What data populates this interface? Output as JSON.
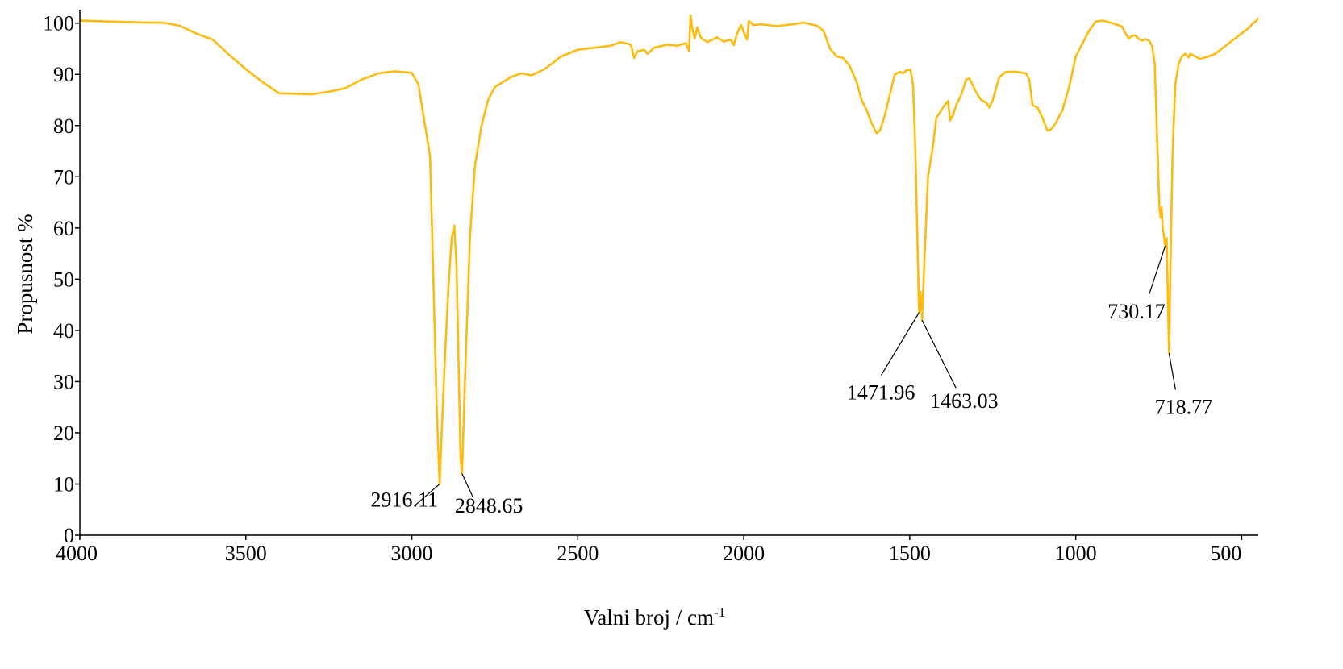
{
  "colors": {
    "series": "#FDBB0F",
    "axes": "#000000",
    "background": "#FFFFFF"
  },
  "chart_data": {
    "type": "line",
    "title": "",
    "xlabel": "Valni broj / cm",
    "xlabel_sup": "-1",
    "ylabel": "Propusnost %",
    "xlim": [
      4000,
      450
    ],
    "ylim": [
      0,
      102
    ],
    "x_reversed": true,
    "grid": false,
    "legend": "none",
    "x_ticks": [
      4000,
      3500,
      3000,
      2500,
      2000,
      1500,
      1000,
      500
    ],
    "x_tick_labels": [
      "4000",
      "3500",
      "3000",
      "2500",
      "2000",
      "1500",
      "1000",
      "500"
    ],
    "y_ticks": [
      0,
      10,
      20,
      30,
      40,
      50,
      60,
      70,
      80,
      90,
      100
    ],
    "y_tick_labels": [
      "0",
      "10",
      "20",
      "30",
      "40",
      "50",
      "60",
      "70",
      "80",
      "90",
      "100"
    ],
    "series": [
      {
        "points": [
          [
            4000,
            100.5
          ],
          [
            3900,
            100.3
          ],
          [
            3800,
            100.1
          ],
          [
            3750,
            100.1
          ],
          [
            3700,
            99.5
          ],
          [
            3650,
            98.0
          ],
          [
            3600,
            96.8
          ],
          [
            3550,
            93.8
          ],
          [
            3500,
            91.0
          ],
          [
            3450,
            88.5
          ],
          [
            3400,
            86.3
          ],
          [
            3350,
            86.2
          ],
          [
            3300,
            86.1
          ],
          [
            3250,
            86.6
          ],
          [
            3200,
            87.3
          ],
          [
            3150,
            89.0
          ],
          [
            3100,
            90.2
          ],
          [
            3050,
            90.6
          ],
          [
            3000,
            90.3
          ],
          [
            2980,
            88.0
          ],
          [
            2960,
            80.0
          ],
          [
            2945,
            74.0
          ],
          [
            2935,
            50.0
          ],
          [
            2925,
            25.0
          ],
          [
            2916.11,
            10.0
          ],
          [
            2910,
            20.0
          ],
          [
            2900,
            35.0
          ],
          [
            2890,
            48.0
          ],
          [
            2880,
            58.0
          ],
          [
            2872,
            60.5
          ],
          [
            2865,
            52.0
          ],
          [
            2858,
            30.0
          ],
          [
            2853,
            15.0
          ],
          [
            2848.65,
            12.0
          ],
          [
            2840,
            30.0
          ],
          [
            2825,
            58.0
          ],
          [
            2810,
            72.0
          ],
          [
            2790,
            80.0
          ],
          [
            2770,
            85.0
          ],
          [
            2750,
            87.5
          ],
          [
            2700,
            89.5
          ],
          [
            2670,
            90.2
          ],
          [
            2640,
            89.8
          ],
          [
            2600,
            91.0
          ],
          [
            2550,
            93.5
          ],
          [
            2500,
            94.8
          ],
          [
            2450,
            95.2
          ],
          [
            2400,
            95.6
          ],
          [
            2370,
            96.3
          ],
          [
            2340,
            95.8
          ],
          [
            2330,
            93.2
          ],
          [
            2320,
            94.5
          ],
          [
            2300,
            94.8
          ],
          [
            2290,
            94.0
          ],
          [
            2270,
            95.2
          ],
          [
            2230,
            95.8
          ],
          [
            2200,
            95.6
          ],
          [
            2175,
            96.1
          ],
          [
            2165,
            94.6
          ],
          [
            2160,
            101.5
          ],
          [
            2155,
            99.0
          ],
          [
            2148,
            97.0
          ],
          [
            2140,
            99.2
          ],
          [
            2130,
            97.2
          ],
          [
            2110,
            96.3
          ],
          [
            2080,
            97.2
          ],
          [
            2060,
            96.4
          ],
          [
            2040,
            96.8
          ],
          [
            2030,
            95.7
          ],
          [
            2020,
            98.0
          ],
          [
            2008,
            99.6
          ],
          [
            2000,
            98.2
          ],
          [
            1990,
            96.8
          ],
          [
            1985,
            100.4
          ],
          [
            1970,
            99.6
          ],
          [
            1950,
            99.8
          ],
          [
            1900,
            99.4
          ],
          [
            1850,
            99.8
          ],
          [
            1820,
            100.1
          ],
          [
            1780,
            99.5
          ],
          [
            1760,
            98.5
          ],
          [
            1740,
            95.0
          ],
          [
            1720,
            93.5
          ],
          [
            1700,
            93.2
          ],
          [
            1680,
            91.5
          ],
          [
            1660,
            88.5
          ],
          [
            1645,
            85.0
          ],
          [
            1630,
            83.0
          ],
          [
            1615,
            80.5
          ],
          [
            1600,
            78.5
          ],
          [
            1590,
            79.0
          ],
          [
            1575,
            82.0
          ],
          [
            1560,
            86.0
          ],
          [
            1545,
            90.0
          ],
          [
            1530,
            90.5
          ],
          [
            1520,
            90.2
          ],
          [
            1510,
            90.8
          ],
          [
            1498,
            90.9
          ],
          [
            1490,
            88.0
          ],
          [
            1483,
            75.0
          ],
          [
            1477,
            58.0
          ],
          [
            1471.96,
            43.5
          ],
          [
            1468,
            47.5
          ],
          [
            1465,
            45.0
          ],
          [
            1463.03,
            42.0
          ],
          [
            1455,
            55.0
          ],
          [
            1445,
            70.0
          ],
          [
            1430,
            76.0
          ],
          [
            1420,
            81.5
          ],
          [
            1400,
            83.5
          ],
          [
            1385,
            84.8
          ],
          [
            1378,
            81.0
          ],
          [
            1370,
            82.0
          ],
          [
            1360,
            84.0
          ],
          [
            1345,
            86.0
          ],
          [
            1330,
            89.0
          ],
          [
            1320,
            89.2
          ],
          [
            1300,
            86.5
          ],
          [
            1285,
            85.0
          ],
          [
            1270,
            84.5
          ],
          [
            1260,
            83.5
          ],
          [
            1250,
            85.0
          ],
          [
            1230,
            89.5
          ],
          [
            1210,
            90.5
          ],
          [
            1180,
            90.5
          ],
          [
            1150,
            90.2
          ],
          [
            1140,
            89.0
          ],
          [
            1130,
            84.0
          ],
          [
            1115,
            83.5
          ],
          [
            1100,
            81.5
          ],
          [
            1085,
            79.0
          ],
          [
            1075,
            79.2
          ],
          [
            1060,
            80.5
          ],
          [
            1040,
            83.0
          ],
          [
            1020,
            87.5
          ],
          [
            1000,
            93.5
          ],
          [
            980,
            96.0
          ],
          [
            960,
            98.5
          ],
          [
            940,
            100.3
          ],
          [
            920,
            100.5
          ],
          [
            900,
            100.2
          ],
          [
            880,
            99.8
          ],
          [
            860,
            99.3
          ],
          [
            850,
            98.0
          ],
          [
            840,
            97.0
          ],
          [
            830,
            97.5
          ],
          [
            820,
            97.6
          ],
          [
            810,
            96.9
          ],
          [
            800,
            96.6
          ],
          [
            790,
            96.9
          ],
          [
            778,
            96.5
          ],
          [
            770,
            95.5
          ],
          [
            762,
            92.0
          ],
          [
            755,
            78.0
          ],
          [
            748,
            64.0
          ],
          [
            744,
            62.0
          ],
          [
            741,
            64.0
          ],
          [
            738,
            60.0
          ],
          [
            730.17,
            56.5
          ],
          [
            726,
            58.0
          ],
          [
            722,
            45.0
          ],
          [
            718.77,
            35.5
          ],
          [
            714,
            55.0
          ],
          [
            708,
            75.0
          ],
          [
            700,
            88.0
          ],
          [
            690,
            92.0
          ],
          [
            680,
            93.5
          ],
          [
            670,
            94.0
          ],
          [
            660,
            93.3
          ],
          [
            655,
            94.0
          ],
          [
            640,
            93.5
          ],
          [
            625,
            93.0
          ],
          [
            600,
            93.5
          ],
          [
            580,
            94.0
          ],
          [
            560,
            95.0
          ],
          [
            540,
            96.0
          ],
          [
            520,
            97.0
          ],
          [
            500,
            98.0
          ],
          [
            480,
            99.0
          ],
          [
            465,
            100.0
          ],
          [
            455,
            100.5
          ],
          [
            450,
            101.0
          ]
        ]
      }
    ],
    "annotations": [
      {
        "label": "2916.11",
        "x": 2916.11,
        "y": 10.0
      },
      {
        "label": "2848.65",
        "x": 2848.65,
        "y": 12.0
      },
      {
        "label": "1471.96",
        "x": 1471.96,
        "y": 43.5
      },
      {
        "label": "1463.03",
        "x": 1463.03,
        "y": 42.0
      },
      {
        "label": "730.17",
        "x": 730.17,
        "y": 56.5
      },
      {
        "label": "718.77",
        "x": 718.77,
        "y": 35.5
      }
    ]
  }
}
